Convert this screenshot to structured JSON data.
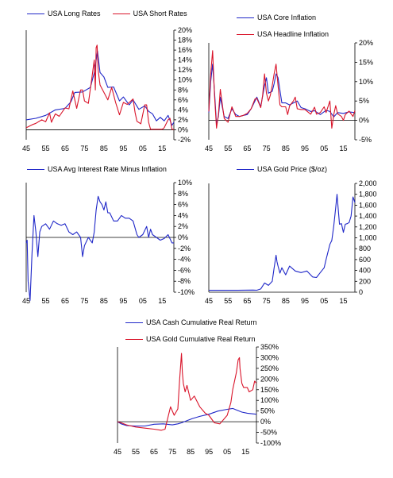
{
  "colors": {
    "blue": "#1f27c8",
    "red": "#d9142a",
    "axis": "#000000"
  },
  "charts": [
    {
      "id": "rates",
      "type": "line",
      "legend": [
        "USA Long Rates",
        "USA Short Rates"
      ],
      "xticks": [
        "45",
        "55",
        "65",
        "75",
        "85",
        "95",
        "05",
        "15"
      ],
      "yticks": [
        "20%",
        "18%",
        "16%",
        "14%",
        "12%",
        "10%",
        "8%",
        "6%",
        "4%",
        "2%",
        "0%",
        "-2%"
      ],
      "ylim": [
        -2,
        20
      ],
      "xlim": [
        1945,
        2021
      ],
      "axis_side": "right"
    },
    {
      "id": "inflation",
      "type": "line",
      "legend": [
        "USA Core Inflation",
        "USA Headline Inflation"
      ],
      "xticks": [
        "45",
        "55",
        "65",
        "75",
        "85",
        "95",
        "05",
        "15"
      ],
      "yticks": [
        "20%",
        "15%",
        "10%",
        "5%",
        "0%",
        "-5%"
      ],
      "ylim": [
        -5,
        20
      ],
      "xlim": [
        1945,
        2021
      ],
      "axis_side": "right"
    },
    {
      "id": "real_rate",
      "type": "line",
      "legend": [
        "USA Avg Interest Rate Minus Inflation"
      ],
      "xticks": [
        "45",
        "55",
        "65",
        "75",
        "85",
        "95",
        "05",
        "15"
      ],
      "yticks": [
        "10%",
        "8%",
        "6%",
        "4%",
        "2%",
        "0%",
        "-2%",
        "-4%",
        "-6%",
        "-8%",
        "-10%"
      ],
      "ylim": [
        -10,
        10
      ],
      "xlim": [
        1945,
        2021
      ],
      "axis_side": "right"
    },
    {
      "id": "gold",
      "type": "line",
      "legend": [
        "USA Gold Price ($/oz)"
      ],
      "xticks": [
        "45",
        "55",
        "65",
        "75",
        "85",
        "95",
        "05",
        "15"
      ],
      "yticks": [
        "2,000",
        "1,800",
        "1,600",
        "1,400",
        "1,200",
        "1,000",
        "800",
        "600",
        "400",
        "200",
        "0"
      ],
      "ylim": [
        0,
        2000
      ],
      "xlim": [
        1945,
        2021
      ],
      "axis_side": "right"
    },
    {
      "id": "cumulative",
      "type": "line",
      "legend": [
        "USA Cash Cumulative Real Return",
        "USA Gold Cumulative Real Return"
      ],
      "xticks": [
        "45",
        "55",
        "65",
        "75",
        "85",
        "95",
        "05",
        "15"
      ],
      "yticks": [
        "350%",
        "300%",
        "250%",
        "200%",
        "150%",
        "100%",
        "50%",
        "0%",
        "-50%",
        "-100%"
      ],
      "ylim": [
        -100,
        350
      ],
      "xlim": [
        1945,
        2021
      ],
      "axis_side": "right"
    }
  ],
  "chart_data": [
    {
      "type": "line",
      "title": "",
      "ylim": [
        -2,
        20
      ],
      "series": [
        {
          "name": "USA Long Rates",
          "color": "#1f27c8",
          "x": [
            1945,
            1950,
            1955,
            1960,
            1965,
            1968,
            1970,
            1974,
            1978,
            1980,
            1981.7,
            1983,
            1985,
            1987,
            1990,
            1993,
            1995,
            1998,
            2000,
            2003,
            2006,
            2008,
            2010,
            2012,
            2014,
            2016,
            2018,
            2020,
            2021
          ],
          "y": [
            2.0,
            2.3,
            2.9,
            4.0,
            4.3,
            5.6,
            7.5,
            7.6,
            8.5,
            11.4,
            15.8,
            11.5,
            10.6,
            8.5,
            8.6,
            5.8,
            6.6,
            5.0,
            6.0,
            4.1,
            4.8,
            3.7,
            3.2,
            1.8,
            2.5,
            1.8,
            2.9,
            0.9,
            1.5
          ]
        },
        {
          "name": "USA Short Rates",
          "color": "#d9142a",
          "x": [
            1945,
            1948,
            1950,
            1953,
            1955,
            1957,
            1958,
            1960,
            1962,
            1965,
            1967,
            1969,
            1971,
            1973,
            1974,
            1975,
            1977,
            1979,
            1980,
            1980.6,
            1981,
            1981.5,
            1982,
            1983,
            1985,
            1987,
            1989,
            1991,
            1993,
            1995,
            1997,
            2000,
            2001,
            2002,
            2004,
            2006,
            2007,
            2008,
            2009,
            2012,
            2015,
            2016,
            2018,
            2019,
            2020,
            2021
          ],
          "y": [
            0.4,
            1.0,
            1.3,
            2.0,
            1.6,
            3.4,
            1.5,
            3.2,
            2.7,
            4.4,
            4.2,
            7.8,
            4.3,
            8.0,
            8.0,
            5.8,
            5.3,
            11.0,
            14.0,
            8.0,
            16.5,
            17.0,
            12.0,
            9.0,
            7.5,
            6.0,
            8.5,
            5.5,
            3.0,
            5.5,
            5.1,
            6.2,
            3.5,
            1.7,
            1.2,
            5.0,
            5.0,
            1.5,
            0.1,
            0.1,
            0.1,
            0.4,
            2.0,
            2.3,
            0.1,
            0.05
          ]
        }
      ]
    },
    {
      "type": "line",
      "title": "",
      "ylim": [
        -5,
        20
      ],
      "series": [
        {
          "name": "USA Core Inflation",
          "color": "#1f27c8",
          "x": [
            1945,
            1946,
            1947,
            1948,
            1949,
            1950,
            1951,
            1953,
            1955,
            1957,
            1959,
            1961,
            1963,
            1965,
            1967,
            1969,
            1970,
            1972,
            1974,
            1975,
            1976,
            1978,
            1979,
            1980,
            1981,
            1983,
            1985,
            1987,
            1989,
            1991,
            1993,
            1995,
            1998,
            2000,
            2003,
            2006,
            2008,
            2010,
            2012,
            2015,
            2018,
            2021
          ],
          "y": [
            2.0,
            10.0,
            14.5,
            7.0,
            -1.0,
            1.0,
            6.0,
            1.0,
            0.5,
            3.0,
            1.5,
            1.0,
            1.3,
            1.5,
            3.0,
            5.0,
            6.0,
            3.5,
            9.0,
            11.0,
            7.0,
            7.5,
            9.5,
            12.0,
            11.0,
            4.5,
            4.5,
            4.0,
            4.5,
            5.0,
            3.3,
            3.0,
            2.3,
            2.5,
            1.5,
            2.6,
            2.3,
            0.9,
            2.0,
            1.8,
            2.2,
            2.0
          ]
        },
        {
          "name": "USA Headline Inflation",
          "color": "#d9142a",
          "x": [
            1945,
            1946,
            1947,
            1948,
            1949,
            1950,
            1951,
            1953,
            1955,
            1957,
            1959,
            1961,
            1963,
            1965,
            1967,
            1969,
            1970,
            1972,
            1973,
            1974,
            1975,
            1976,
            1977,
            1978,
            1979,
            1980,
            1981,
            1982,
            1983,
            1985,
            1986,
            1987,
            1989,
            1990,
            1991,
            1993,
            1995,
            1998,
            2000,
            2001,
            2003,
            2005,
            2006,
            2008,
            2009,
            2010,
            2011,
            2012,
            2014,
            2015,
            2016,
            2018,
            2020,
            2021
          ],
          "y": [
            2.3,
            12.0,
            18.0,
            6.0,
            -2.0,
            1.5,
            8.0,
            0.5,
            -0.5,
            3.5,
            1.0,
            1.0,
            1.3,
            1.8,
            3.0,
            5.5,
            5.7,
            3.3,
            6.5,
            12.0,
            7.0,
            5.0,
            6.5,
            9.0,
            12.0,
            14.5,
            9.0,
            4.0,
            3.5,
            3.5,
            1.5,
            3.7,
            5.0,
            6.0,
            3.0,
            2.8,
            2.8,
            1.6,
            3.4,
            1.6,
            2.0,
            3.5,
            2.0,
            5.0,
            -2.0,
            1.5,
            3.8,
            1.7,
            1.0,
            0.0,
            1.5,
            2.4,
            1.0,
            2.5
          ]
        }
      ]
    },
    {
      "type": "line",
      "title": "",
      "ylim": [
        -10,
        10
      ],
      "series": [
        {
          "name": "USA Avg Interest Rate Minus Inflation",
          "color": "#1f27c8",
          "x": [
            1945,
            1945.5,
            1946,
            1947,
            1948,
            1949,
            1950,
            1951,
            1952,
            1953,
            1955,
            1957,
            1959,
            1961,
            1963,
            1965,
            1967,
            1969,
            1971,
            1973,
            1974,
            1975,
            1977,
            1979,
            1980,
            1981,
            1982,
            1983,
            1984,
            1985,
            1986,
            1987,
            1988,
            1990,
            1992,
            1994,
            1996,
            1998,
            2000,
            2002,
            2003,
            2005,
            2007,
            2008,
            2009,
            2010,
            2012,
            2014,
            2016,
            2018,
            2020,
            2021
          ],
          "y": [
            -1.0,
            -0.5,
            -8.0,
            -11.5,
            -3.0,
            4.0,
            1.0,
            -3.5,
            1.0,
            2.0,
            2.5,
            1.5,
            3.0,
            2.5,
            2.2,
            2.5,
            1.0,
            0.5,
            1.0,
            0.0,
            -3.5,
            -1.5,
            0.0,
            -1.0,
            1.0,
            5.0,
            7.5,
            6.5,
            6.0,
            5.0,
            6.5,
            4.5,
            4.5,
            3.0,
            3.0,
            4.0,
            3.5,
            3.5,
            3.0,
            0.5,
            0.0,
            0.5,
            2.0,
            0.0,
            1.5,
            0.5,
            0.0,
            -0.5,
            -0.2,
            0.5,
            -1.0,
            -1.0
          ]
        }
      ]
    },
    {
      "type": "line",
      "title": "",
      "ylim": [
        0,
        2000
      ],
      "series": [
        {
          "name": "USA Gold Price ($/oz)",
          "color": "#1f27c8",
          "x": [
            1945,
            1950,
            1955,
            1960,
            1968,
            1970,
            1972,
            1974,
            1976,
            1978,
            1979,
            1980,
            1980.5,
            1981,
            1982,
            1983,
            1985,
            1987,
            1990,
            1993,
            1996,
            1999,
            2001,
            2003,
            2005,
            2006,
            2008,
            2009,
            2010,
            2011,
            2011.7,
            2012,
            2013,
            2014,
            2015,
            2016,
            2017,
            2018,
            2019,
            2020,
            2021
          ],
          "y": [
            35,
            35,
            35,
            35,
            40,
            37,
            60,
            170,
            125,
            200,
            450,
            680,
            560,
            480,
            350,
            450,
            320,
            480,
            390,
            360,
            390,
            280,
            270,
            360,
            450,
            600,
            880,
            950,
            1220,
            1550,
            1800,
            1670,
            1250,
            1260,
            1100,
            1250,
            1260,
            1280,
            1400,
            1750,
            1650
          ]
        }
      ]
    },
    {
      "type": "line",
      "title": "",
      "ylim": [
        -100,
        350
      ],
      "series": [
        {
          "name": "USA Cash Cumulative Real Return",
          "color": "#1f27c8",
          "x": [
            1945,
            1947,
            1950,
            1955,
            1960,
            1965,
            1970,
            1975,
            1978,
            1980,
            1983,
            1986,
            1990,
            1995,
            2000,
            2005,
            2008,
            2010,
            2013,
            2016,
            2019,
            2021
          ],
          "y": [
            0,
            -10,
            -18,
            -20,
            -20,
            -12,
            -10,
            -15,
            -10,
            -5,
            5,
            15,
            25,
            35,
            50,
            58,
            62,
            55,
            45,
            40,
            37,
            35
          ]
        },
        {
          "name": "USA Gold Cumulative Real Return",
          "color": "#d9142a",
          "x": [
            1945,
            1947,
            1950,
            1955,
            1960,
            1965,
            1969,
            1971,
            1972,
            1974,
            1976,
            1978,
            1979,
            1980,
            1980.5,
            1981,
            1982,
            1983,
            1985,
            1987,
            1990,
            1993,
            1995,
            1998,
            2001,
            2003,
            2005,
            2007,
            2008,
            2010,
            2011,
            2011.7,
            2012,
            2013,
            2014,
            2016,
            2017,
            2019,
            2020,
            2021
          ],
          "y": [
            0,
            -5,
            -15,
            -25,
            -30,
            -35,
            -40,
            -35,
            0,
            70,
            30,
            60,
            200,
            320,
            230,
            180,
            140,
            170,
            100,
            120,
            70,
            40,
            30,
            -5,
            -10,
            10,
            30,
            90,
            150,
            230,
            290,
            300,
            250,
            180,
            160,
            160,
            140,
            150,
            190,
            180
          ]
        }
      ]
    }
  ]
}
